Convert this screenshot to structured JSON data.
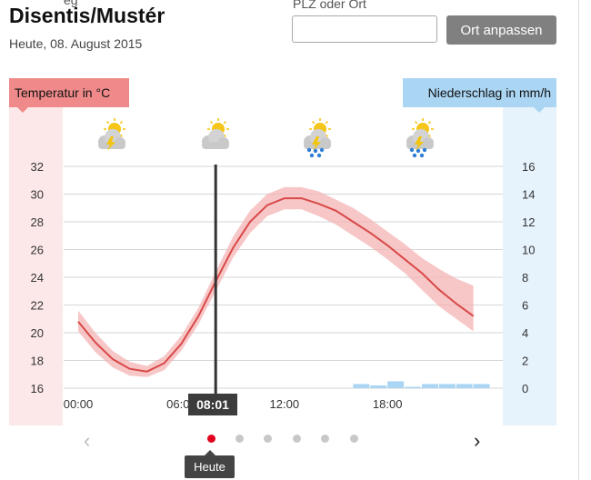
{
  "header": {
    "clipped_text": "eg",
    "title": "Disentis/Mustér",
    "date": "Heute, 08. August 2015"
  },
  "search": {
    "label": "PLZ oder Ort",
    "value": "",
    "button": "Ort anpassen"
  },
  "chart_labels": {
    "temperature": "Temperatur in °C",
    "precipitation": "Niederschlag in mm/h"
  },
  "weather_icons": [
    "sun-cloud-thunder-icon",
    "sun-cloud-icon",
    "sun-cloud-thunder-rain-icon",
    "sun-cloud-thunder-rain-icon"
  ],
  "now_marker": {
    "time": "08:01",
    "x_hour": 8.0
  },
  "colors": {
    "temperature_line": "#d94848",
    "temperature_band": "#f4b4b4",
    "precipitation_bar": "#aad5f3",
    "now_marker": "#333333",
    "pager_active": "#e1001e"
  },
  "chart_data": {
    "type": "line",
    "x_unit": "hour",
    "x_ticks": [
      "00:00",
      "06:00",
      "12:00",
      "18:00"
    ],
    "x_tick_values": [
      0,
      6,
      12,
      18
    ],
    "xlim": [
      0,
      24
    ],
    "y_left": {
      "label": "Temperatur in °C",
      "ticks": [
        16,
        18,
        20,
        22,
        24,
        26,
        28,
        30,
        32
      ],
      "ylim": [
        16,
        32
      ]
    },
    "y_right": {
      "label": "Niederschlag in mm/h",
      "ticks": [
        0,
        2,
        4,
        6,
        8,
        10,
        12,
        14,
        16
      ],
      "ylim": [
        0,
        16
      ]
    },
    "grid": true,
    "temperature": {
      "x": [
        0,
        1,
        2,
        3,
        4,
        5,
        6,
        7,
        8,
        9,
        10,
        11,
        12,
        13,
        14,
        15,
        16,
        17,
        18,
        19,
        20,
        21,
        22,
        23
      ],
      "mean": [
        20.8,
        19.3,
        18.1,
        17.4,
        17.2,
        17.8,
        19.2,
        21.2,
        23.7,
        26.1,
        28.0,
        29.2,
        29.7,
        29.7,
        29.3,
        28.8,
        28.0,
        27.2,
        26.3,
        25.3,
        24.3,
        23.1,
        22.1,
        21.2
      ],
      "upper": [
        21.6,
        20.0,
        18.7,
        17.9,
        17.6,
        18.3,
        19.8,
        21.8,
        24.4,
        26.9,
        28.8,
        30.0,
        30.5,
        30.5,
        30.2,
        29.6,
        29.0,
        28.2,
        27.3,
        26.4,
        25.4,
        24.6,
        23.9,
        23.4
      ],
      "lower": [
        20.1,
        18.6,
        17.5,
        16.9,
        16.8,
        17.3,
        18.7,
        20.6,
        23.0,
        25.4,
        27.2,
        28.4,
        28.9,
        28.9,
        28.4,
        27.8,
        27.0,
        26.2,
        25.3,
        24.3,
        23.1,
        21.9,
        21.0,
        20.1
      ]
    },
    "precipitation": {
      "x": [
        16,
        17,
        18,
        19,
        20,
        21,
        22,
        23
      ],
      "values": [
        0.3,
        0.2,
        0.5,
        0.1,
        0.3,
        0.3,
        0.3,
        0.3
      ]
    }
  },
  "pager": {
    "prev": "‹",
    "next": "›",
    "count": 6,
    "active": 0,
    "tooltip": "Heute"
  }
}
